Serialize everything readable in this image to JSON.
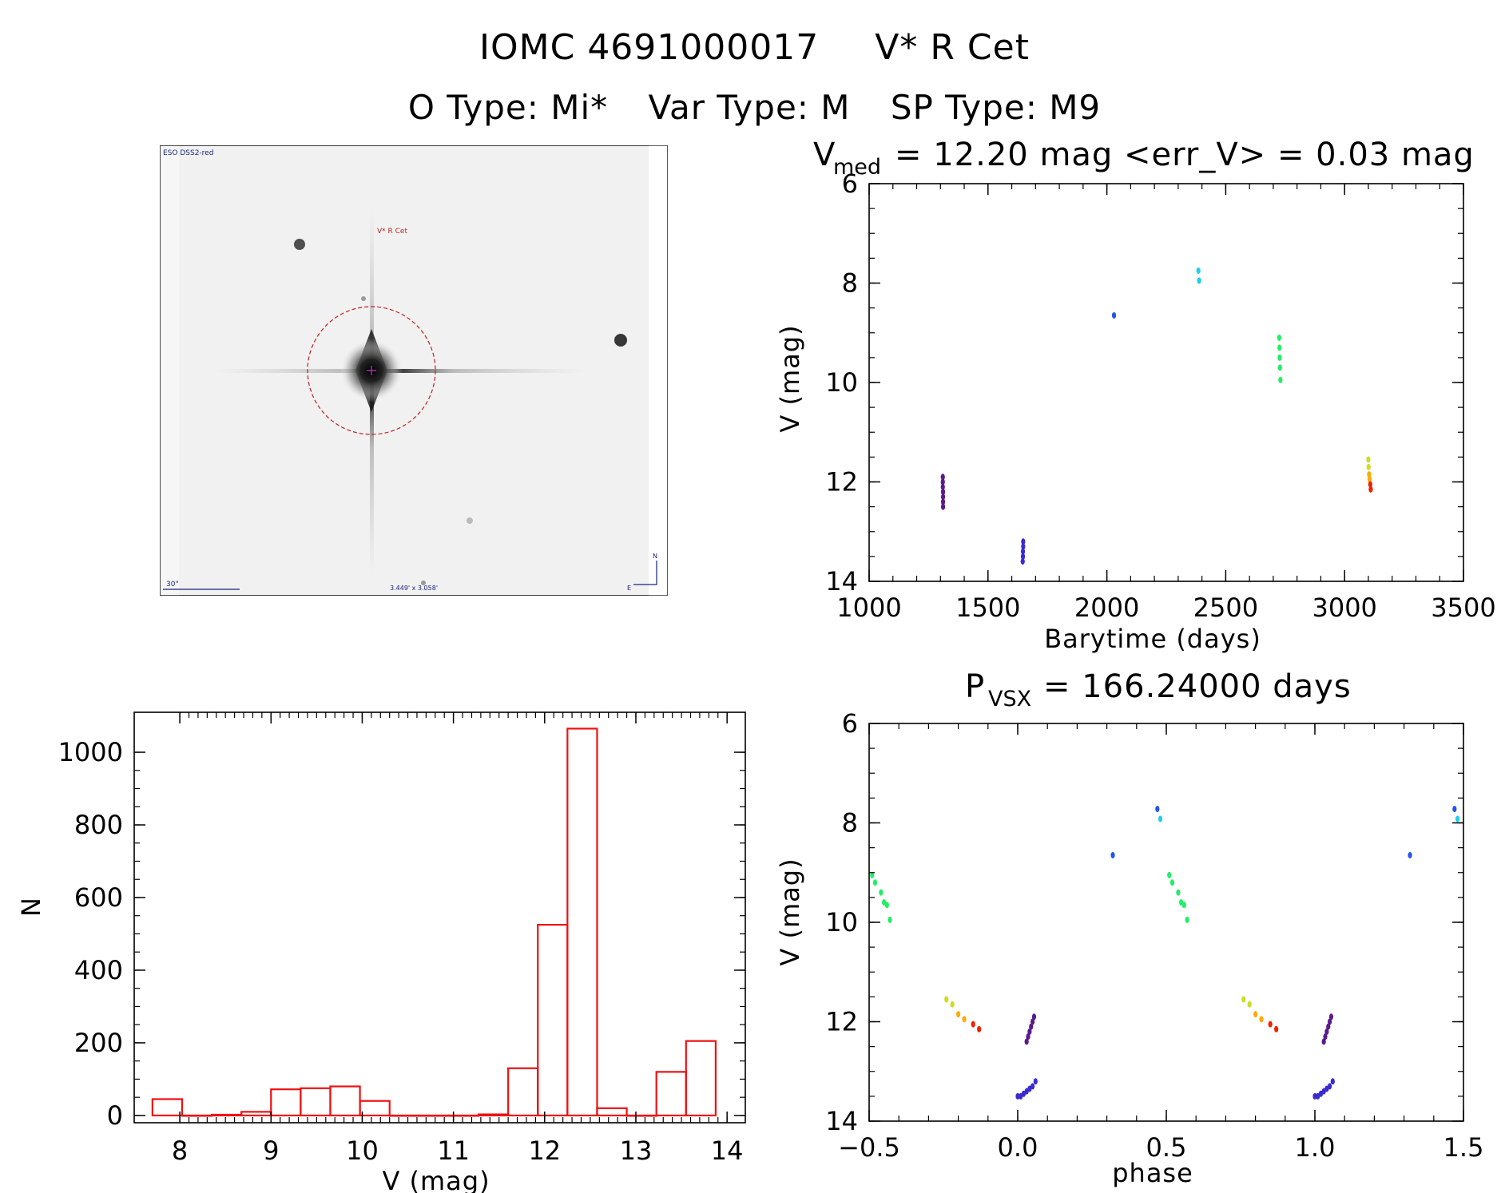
{
  "header": {
    "line1_id": "IOMC 4691000017",
    "line1_name": "V* R Cet",
    "otype": "O Type: Mi*",
    "vartype": "Var Type: M",
    "sptype": "SP Type: M9"
  },
  "thumbnail": {
    "survey": "ESO DSS2-red",
    "target_label": "V* R Cet",
    "scale_label": "30\"",
    "fov_label": "3.449' x 3.058'",
    "north": "N",
    "east": "E"
  },
  "panel_lc": {
    "title_prefix": "V",
    "title_sub": "med",
    "title_rest": "= 12.20 mag <err_V> = 0.03 mag",
    "xlabel": "Barytime (days)",
    "ylabel": "V (mag)"
  },
  "panel_phase": {
    "title_prefix": "P",
    "title_sub": "VSX",
    "title_rest": "= 166.24000 days",
    "xlabel": "phase",
    "ylabel": "V (mag)"
  },
  "panel_hist": {
    "xlabel": "V (mag)",
    "ylabel": "N"
  },
  "chart_data": [
    {
      "type": "scatter",
      "id": "lightcurve",
      "title": "V_med = 12.20 mag <err_V> = 0.03 mag",
      "xlabel": "Barytime (days)",
      "ylabel": "V (mag)",
      "xlim": [
        1000,
        3500
      ],
      "ylim": [
        14,
        6
      ],
      "y_inverted": true,
      "xticks": [
        "1000",
        "1500",
        "2000",
        "2500",
        "3000",
        "3500"
      ],
      "yticks": [
        "6",
        "8",
        "10",
        "12",
        "14"
      ],
      "groups": [
        {
          "color": "#5a1a8c",
          "points": [
            [
              1310,
              11.9
            ],
            [
              1310,
              12.0
            ],
            [
              1310,
              12.1
            ],
            [
              1311,
              12.2
            ],
            [
              1311,
              12.3
            ],
            [
              1311,
              12.4
            ],
            [
              1311,
              12.5
            ]
          ]
        },
        {
          "color": "#3a2bd0",
          "points": [
            [
              1648,
              13.2
            ],
            [
              1648,
              13.3
            ],
            [
              1647,
              13.4
            ],
            [
              1647,
              13.5
            ],
            [
              1646,
              13.6
            ]
          ]
        },
        {
          "color": "#2255ee",
          "points": [
            [
              2030,
              8.65
            ]
          ]
        },
        {
          "color": "#22ccee",
          "points": [
            [
              2385,
              7.75
            ],
            [
              2388,
              7.95
            ]
          ]
        },
        {
          "color": "#22ee66",
          "points": [
            [
              2725,
              9.1
            ],
            [
              2726,
              9.3
            ],
            [
              2727,
              9.5
            ],
            [
              2728,
              9.7
            ],
            [
              2730,
              9.95
            ]
          ]
        },
        {
          "color": "#ccdd22",
          "points": [
            [
              3100,
              11.55
            ],
            [
              3101,
              11.7
            ]
          ]
        },
        {
          "color": "#ffaa00",
          "points": [
            [
              3103,
              11.85
            ],
            [
              3105,
              11.95
            ]
          ]
        },
        {
          "color": "#ee2200",
          "points": [
            [
              3108,
              12.05
            ],
            [
              3110,
              12.15
            ]
          ]
        }
      ]
    },
    {
      "type": "scatter",
      "id": "phased",
      "title": "P_VSX = 166.24000 days",
      "xlabel": "phase",
      "ylabel": "V (mag)",
      "xlim": [
        -0.5,
        1.5
      ],
      "ylim": [
        14,
        6
      ],
      "y_inverted": true,
      "xticks": [
        "−0.5",
        "0.0",
        "0.5",
        "1.0",
        "1.5"
      ],
      "yticks": [
        "6",
        "8",
        "10",
        "12",
        "14"
      ],
      "groups": [
        {
          "color": "#22ee66",
          "points": [
            [
              -0.49,
              9.05
            ],
            [
              -0.48,
              9.2
            ],
            [
              -0.46,
              9.4
            ],
            [
              -0.45,
              9.6
            ],
            [
              -0.44,
              9.65
            ],
            [
              -0.43,
              9.95
            ],
            [
              0.51,
              9.05
            ],
            [
              0.52,
              9.2
            ],
            [
              0.54,
              9.4
            ],
            [
              0.55,
              9.6
            ],
            [
              0.56,
              9.65
            ],
            [
              0.57,
              9.95
            ]
          ]
        },
        {
          "color": "#ccdd22",
          "points": [
            [
              -0.24,
              11.55
            ],
            [
              -0.22,
              11.65
            ],
            [
              0.76,
              11.55
            ],
            [
              0.78,
              11.65
            ]
          ]
        },
        {
          "color": "#ffaa00",
          "points": [
            [
              -0.2,
              11.85
            ],
            [
              -0.18,
              11.95
            ],
            [
              0.8,
              11.85
            ],
            [
              0.82,
              11.95
            ]
          ]
        },
        {
          "color": "#ee2200",
          "points": [
            [
              -0.15,
              12.05
            ],
            [
              -0.13,
              12.15
            ],
            [
              0.85,
              12.05
            ],
            [
              0.87,
              12.15
            ]
          ]
        },
        {
          "color": "#5a1a8c",
          "points": [
            [
              0.03,
              12.4
            ],
            [
              0.035,
              12.3
            ],
            [
              0.04,
              12.2
            ],
            [
              0.045,
              12.1
            ],
            [
              0.05,
              12.0
            ],
            [
              0.055,
              11.9
            ],
            [
              1.03,
              12.4
            ],
            [
              1.035,
              12.3
            ],
            [
              1.04,
              12.2
            ],
            [
              1.045,
              12.1
            ],
            [
              1.05,
              12.0
            ],
            [
              1.055,
              11.9
            ]
          ]
        },
        {
          "color": "#3a2bd0",
          "points": [
            [
              0.0,
              13.5
            ],
            [
              0.01,
              13.5
            ],
            [
              0.02,
              13.45
            ],
            [
              0.03,
              13.4
            ],
            [
              0.04,
              13.35
            ],
            [
              0.05,
              13.3
            ],
            [
              0.06,
              13.2
            ],
            [
              1.0,
              13.5
            ],
            [
              1.01,
              13.5
            ],
            [
              1.02,
              13.45
            ],
            [
              1.03,
              13.4
            ],
            [
              1.04,
              13.35
            ],
            [
              1.05,
              13.3
            ],
            [
              1.06,
              13.2
            ]
          ]
        },
        {
          "color": "#2255ee",
          "points": [
            [
              0.32,
              8.65
            ],
            [
              0.47,
              7.72
            ],
            [
              1.32,
              8.65
            ],
            [
              1.47,
              7.72
            ]
          ]
        },
        {
          "color": "#22ccee",
          "points": [
            [
              0.48,
              7.92
            ],
            [
              1.48,
              7.92
            ]
          ]
        }
      ]
    },
    {
      "type": "bar",
      "id": "histogram",
      "xlabel": "V (mag)",
      "ylabel": "N",
      "xlim": [
        7.5,
        14.2
      ],
      "ylim": [
        -20,
        1110
      ],
      "xticks": [
        "8",
        "9",
        "10",
        "11",
        "12",
        "13",
        "14"
      ],
      "yticks": [
        "0",
        "200",
        "400",
        "600",
        "800",
        "1000"
      ],
      "bin_width": 0.325,
      "bins": [
        {
          "left": 7.7,
          "value": 45
        },
        {
          "left": 8.025,
          "value": 0
        },
        {
          "left": 8.35,
          "value": 2
        },
        {
          "left": 8.675,
          "value": 10
        },
        {
          "left": 9.0,
          "value": 72
        },
        {
          "left": 9.325,
          "value": 75
        },
        {
          "left": 9.65,
          "value": 80
        },
        {
          "left": 9.975,
          "value": 40
        },
        {
          "left": 10.3,
          "value": 0
        },
        {
          "left": 10.625,
          "value": 0
        },
        {
          "left": 10.95,
          "value": 0
        },
        {
          "left": 11.275,
          "value": 3
        },
        {
          "left": 11.6,
          "value": 130
        },
        {
          "left": 11.925,
          "value": 525
        },
        {
          "left": 12.25,
          "value": 1065
        },
        {
          "left": 12.575,
          "value": 20
        },
        {
          "left": 12.9,
          "value": 0
        },
        {
          "left": 13.225,
          "value": 120
        },
        {
          "left": 13.55,
          "value": 205
        }
      ]
    }
  ]
}
